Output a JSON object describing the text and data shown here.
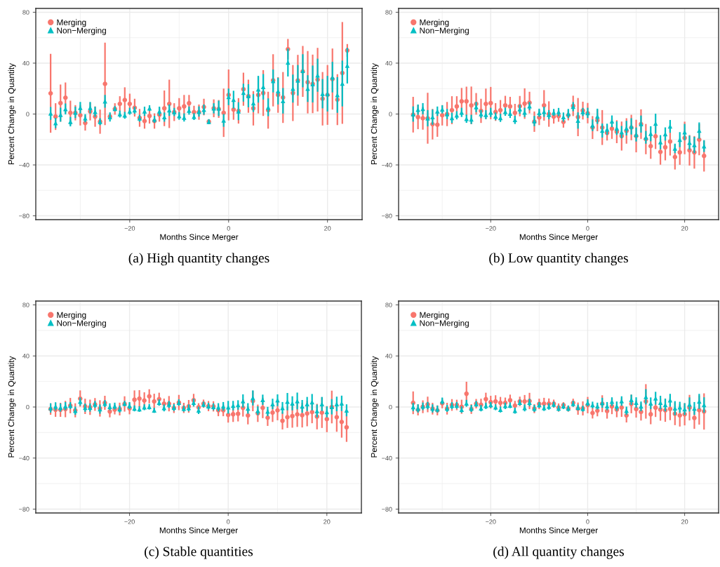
{
  "chart_data": [
    {
      "type": "scatter",
      "title": "(a) High quantity changes",
      "xlabel": "Months Since Merger",
      "ylabel": "Percent Change in Quantity",
      "x": [
        -36,
        -35,
        -34,
        -33,
        -32,
        -31,
        -30,
        -29,
        -28,
        -27,
        -26,
        -25,
        -24,
        -23,
        -22,
        -21,
        -20,
        -19,
        -18,
        -17,
        -16,
        -15,
        -14,
        -13,
        -12,
        -11,
        -10,
        -9,
        -8,
        -7,
        -6,
        -5,
        -4,
        -3,
        -2,
        -1,
        0,
        1,
        2,
        3,
        4,
        5,
        6,
        7,
        8,
        9,
        10,
        11,
        12,
        13,
        14,
        15,
        16,
        17,
        18,
        19,
        20,
        21,
        22,
        23,
        24
      ],
      "xlim": [
        -39,
        27
      ],
      "ylim": [
        -83,
        83
      ],
      "xticks": [
        {
          "value": -30,
          "label": null
        },
        {
          "value": -20,
          "label": "−20"
        },
        {
          "value": -10,
          "label": null
        },
        0,
        {
          "value": 10,
          "label": null
        },
        20
      ],
      "yticks": [
        {
          "value": -80,
          "label": "−80"
        },
        {
          "value": -60,
          "label": null
        },
        {
          "value": -40,
          "label": "−40"
        },
        {
          "value": -20,
          "label": null
        },
        0,
        {
          "value": 20,
          "label": null
        },
        40,
        {
          "value": 60,
          "label": null
        },
        80
      ],
      "grid": true,
      "legend": "top left",
      "series": [
        {
          "name": "Merging",
          "color": "#f8766d",
          "marker": "circle",
          "values": [
            16.3,
            -2,
            8.6,
            12.8,
            1,
            1,
            -1,
            -7,
            2,
            -2,
            -6,
            23.7,
            -2,
            4,
            8,
            11,
            8,
            5,
            -3,
            -5.5,
            -1.5,
            -5.5,
            -0.5,
            4.5,
            8,
            1.5,
            4.5,
            6,
            8.5,
            1.5,
            1.5,
            5.5,
            -6,
            4.5,
            4,
            1,
            15,
            3.5,
            2.5,
            19.5,
            14,
            4.5,
            15,
            16.5,
            3,
            26.5,
            15,
            13,
            51,
            16.5,
            26.5,
            33.5,
            25,
            23.7,
            27,
            12,
            15,
            27.5,
            11.3,
            32.3,
            50
          ],
          "errors": [
            31,
            10.5,
            14.6,
            12,
            9.5,
            6,
            8,
            6,
            7,
            8,
            9.5,
            32.4,
            null,
            4.5,
            6,
            10,
            8,
            7,
            7,
            6,
            6,
            6,
            5.5,
            14,
            19,
            7,
            8,
            9,
            6.5,
            5,
            6,
            6.5,
            null,
            7,
            7,
            19,
            20,
            8,
            10,
            13,
            13,
            13.5,
            14.5,
            18,
            14.5,
            20.5,
            14,
            20,
            8,
            22,
            20,
            20,
            24.5,
            23,
            25,
            21,
            23.5,
            24,
            20,
            40,
            5
          ]
        },
        {
          "name": "Non−Merging",
          "color": "#00bfc4",
          "marker": "triangle",
          "values": [
            0.5,
            -7,
            -0.5,
            4,
            -6,
            1.3,
            5,
            -3.3,
            5,
            1.8,
            -6,
            10,
            -2.3,
            4.2,
            0,
            -1,
            2.2,
            3,
            -3.3,
            2.2,
            4.6,
            -4.2,
            2.2,
            -2.4,
            3,
            1.6,
            -1.5,
            -2.7,
            2.7,
            -2,
            2,
            3.5,
            -6,
            4.5,
            4.5,
            -5,
            13.5,
            11.3,
            2.2,
            16.8,
            14.4,
            8.6,
            19.5,
            21.4,
            5.3,
            26,
            18,
            10.4,
            40.5,
            20,
            26.5,
            34,
            20,
            23.6,
            30.5,
            16,
            16,
            29,
            15,
            24,
            38
          ],
          "errors": [
            5,
            4,
            5.5,
            4.3,
            3.7,
            4.5,
            4.5,
            3.2,
            4.5,
            4,
            2.7,
            5,
            3.6,
            2,
            2.7,
            2.7,
            2.7,
            2.7,
            2.7,
            3.6,
            2.3,
            2.7,
            3.6,
            3.6,
            4.5,
            3.2,
            3,
            3.2,
            3.2,
            2.7,
            4,
            4,
            2,
            4,
            6,
            5,
            6.5,
            7,
            7,
            7,
            9,
            7,
            10.5,
            10,
            7,
            9,
            10.5,
            10,
            11,
            11,
            12,
            13,
            10.5,
            14.5,
            13,
            11.5,
            14,
            12,
            14,
            18,
            14
          ]
        }
      ]
    },
    {
      "type": "scatter",
      "title": "(b) Low quantity changes",
      "xlabel": "Months Since Merger",
      "ylabel": "Percent Change in Quantity",
      "x": [
        -36,
        -35,
        -34,
        -33,
        -32,
        -31,
        -30,
        -29,
        -28,
        -27,
        -26,
        -25,
        -24,
        -23,
        -22,
        -21,
        -20,
        -19,
        -18,
        -17,
        -16,
        -15,
        -14,
        -13,
        -12,
        -11,
        -10,
        -9,
        -8,
        -7,
        -6,
        -5,
        -4,
        -3,
        -2,
        -1,
        0,
        1,
        2,
        3,
        4,
        5,
        6,
        7,
        8,
        9,
        10,
        11,
        12,
        13,
        14,
        15,
        16,
        17,
        18,
        19,
        20,
        21,
        22,
        23,
        24
      ],
      "xlim": [
        -39,
        27
      ],
      "ylim": [
        -83,
        83
      ],
      "xticks": [
        {
          "value": -30,
          "label": null
        },
        {
          "value": -20,
          "label": "−20"
        },
        {
          "value": -10,
          "label": null
        },
        0,
        {
          "value": 10,
          "label": null
        },
        20
      ],
      "yticks": [
        {
          "value": -80,
          "label": "−80"
        },
        {
          "value": -60,
          "label": null
        },
        {
          "value": -40,
          "label": "−40"
        },
        {
          "value": -20,
          "label": null
        },
        0,
        {
          "value": 20,
          "label": null
        },
        40,
        {
          "value": 60,
          "label": null
        },
        80
      ],
      "grid": true,
      "legend": "top left",
      "series": [
        {
          "name": "Merging",
          "color": "#f8766d",
          "marker": "circle",
          "values": [
            -0.5,
            -2.4,
            -3.3,
            -3.3,
            -8,
            -8.4,
            -1,
            0,
            3,
            6,
            10,
            10,
            6.8,
            8,
            2.5,
            8,
            8.6,
            1.6,
            3,
            6.8,
            6,
            1,
            6.2,
            8.2,
            9,
            -6,
            -2.7,
            6.8,
            0,
            -2,
            -1.6,
            -6.2,
            -1,
            6.4,
            -2.4,
            2.7,
            0.7,
            -10.6,
            -5,
            -10.6,
            -14.8,
            -11.5,
            -13.9,
            -17.3,
            -13.3,
            -10.6,
            -17.3,
            -7.9,
            -19.7,
            -25.2,
            -17.5,
            -29.8,
            -26.1,
            -21.6,
            -33.8,
            -30.1,
            -18.8,
            -28.5,
            -30.1,
            -20.1,
            -32.9
          ],
          "errors": [
            14,
            9.5,
            9,
            20,
            12,
            9.5,
            8,
            9.5,
            11,
            8,
            10.5,
            11.5,
            14.8,
            8.5,
            9.5,
            12,
            12.7,
            7,
            8,
            7.5,
            7.5,
            7,
            8,
            12,
            8.5,
            8,
            6,
            12,
            10,
            5.5,
            4.5,
            4.5,
            4,
            8,
            15,
            7,
            8,
            9,
            8.5,
            13.7,
            6,
            8,
            9,
            11.4,
            10,
            10,
            12.8,
            11.6,
            11.9,
            10,
            10,
            10,
            10.3,
            11,
            9.8,
            9.8,
            12.8,
            12,
            12.8,
            12.3,
            12.3
          ]
        },
        {
          "name": "Non−Merging",
          "color": "#00bfc4",
          "marker": "triangle",
          "values": [
            0,
            3.5,
            4.2,
            -3.3,
            -2.4,
            2.2,
            3.7,
            0,
            -3,
            -1,
            1.3,
            -3.7,
            -4.2,
            5.5,
            0,
            -0.5,
            1.3,
            -1.8,
            -3,
            1.8,
            0.4,
            -4.6,
            3.8,
            1.3,
            6.2,
            -5.5,
            1,
            1.8,
            -0.5,
            1.3,
            1.6,
            -2.4,
            0.4,
            5.8,
            -5.1,
            1.6,
            0.9,
            -8.8,
            -1.8,
            -13,
            -12,
            -5.7,
            -11.1,
            -14.2,
            -11.1,
            -9.7,
            -16.1,
            -7.9,
            -18.3,
            -15.5,
            -7.5,
            -22.1,
            -15.7,
            -9.7,
            -27,
            -20.1,
            -14.2,
            -22.5,
            -24.3,
            -13,
            -25.2
          ],
          "errors": [
            6,
            4,
            4.4,
            6.4,
            6,
            3.7,
            3.2,
            4,
            4,
            3.2,
            3.6,
            3.2,
            3.6,
            4,
            3.2,
            3.5,
            3.6,
            3,
            3.2,
            3.2,
            3.5,
            3.2,
            3.5,
            3.6,
            3.2,
            4,
            3.2,
            4,
            3.6,
            2.7,
            3.2,
            3.6,
            3.6,
            3.6,
            6.4,
            3.2,
            4,
            4.6,
            6,
            5.5,
            4.4,
            4.6,
            5.3,
            4.8,
            5.7,
            6.4,
            5.5,
            6.7,
            5,
            5.9,
            7.8,
            5.5,
            5.2,
            5,
            3.7,
            5.9,
            6.4,
            5.5,
            6.4,
            6.4,
            4.6
          ]
        }
      ]
    },
    {
      "type": "scatter",
      "title": "(c) Stable quantities",
      "xlabel": "Months Since Merger",
      "ylabel": "Percent Change in Quantity",
      "x": [
        -36,
        -35,
        -34,
        -33,
        -32,
        -31,
        -30,
        -29,
        -28,
        -27,
        -26,
        -25,
        -24,
        -23,
        -22,
        -21,
        -20,
        -19,
        -18,
        -17,
        -16,
        -15,
        -14,
        -13,
        -12,
        -11,
        -10,
        -9,
        -8,
        -7,
        -6,
        -5,
        -4,
        -3,
        -2,
        -1,
        0,
        1,
        2,
        3,
        4,
        5,
        6,
        7,
        8,
        9,
        10,
        11,
        12,
        13,
        14,
        15,
        16,
        17,
        18,
        19,
        20,
        21,
        22,
        23,
        24
      ],
      "xlim": [
        -39,
        27
      ],
      "ylim": [
        -83,
        83
      ],
      "xticks": [
        {
          "value": -30,
          "label": null
        },
        {
          "value": -20,
          "label": "−20"
        },
        {
          "value": -10,
          "label": null
        },
        0,
        {
          "value": 10,
          "label": null
        },
        20
      ],
      "yticks": [
        {
          "value": -80,
          "label": "−80"
        },
        {
          "value": -60,
          "label": null
        },
        {
          "value": -40,
          "label": "−40"
        },
        {
          "value": -20,
          "label": null
        },
        0,
        {
          "value": 20,
          "label": null
        },
        40,
        {
          "value": 60,
          "label": null
        },
        80
      ],
      "grid": true,
      "legend": "top left",
      "series": [
        {
          "name": "Merging",
          "color": "#f8766d",
          "marker": "circle",
          "values": [
            -1.6,
            -2.2,
            -2.2,
            -1.6,
            1.1,
            -2.6,
            6.6,
            0.5,
            -0.2,
            2,
            -1.1,
            3.3,
            -3.5,
            -2,
            -1.6,
            2.4,
            -1.1,
            5.7,
            6.6,
            5.1,
            8.4,
            4.4,
            6.2,
            2.6,
            2.6,
            -0.7,
            3.5,
            -0.7,
            0.5,
            5.3,
            -0.2,
            2.6,
            0.7,
            0.5,
            -2.6,
            -2.6,
            -6.2,
            -5.7,
            -5.3,
            -0.7,
            -6.6,
            4.7,
            -4.9,
            -0.7,
            -8.4,
            -4.4,
            -2.6,
            -10.8,
            -8,
            -7.1,
            -5.8,
            -6.4,
            -5.1,
            -4,
            -7.5,
            -4.4,
            -9.5,
            0,
            -8,
            -11.7,
            -15.9
          ],
          "errors": [
            4.5,
            5.5,
            5.5,
            6.4,
            6,
            5.5,
            6.4,
            6,
            6,
            5,
            6.4,
            5.5,
            4.6,
            3.8,
            5,
            6,
            4.6,
            7.3,
            6.6,
            6.4,
            5.5,
            6,
            5,
            4,
            6,
            4,
            6,
            4,
            5,
            5,
            3.2,
            3.2,
            4,
            4,
            4.6,
            4.6,
            6,
            6,
            6,
            6.8,
            7,
            8,
            6.8,
            8,
            6.4,
            7.3,
            7.8,
            6.8,
            8.4,
            9.1,
            9.8,
            9.6,
            10,
            8.7,
            10,
            12,
            10.2,
            12.8,
            11.4,
            12.3,
            11.4
          ]
        },
        {
          "name": "Non−Merging",
          "color": "#00bfc4",
          "marker": "triangle",
          "values": [
            -0.7,
            0.5,
            -0.4,
            0.7,
            1.1,
            -2.9,
            4.2,
            -0.5,
            -0.4,
            2,
            -1.6,
            2.7,
            0.2,
            0.7,
            -1.6,
            2.7,
            1.1,
            -1.1,
            -1.6,
            -0.2,
            0.2,
            -2.6,
            3.5,
            -0.7,
            2,
            -0.4,
            3.5,
            -1.3,
            -0.7,
            3.5,
            -2.6,
            2,
            0.7,
            0.2,
            -0.2,
            0.5,
            -0.2,
            1.1,
            1.6,
            4.7,
            -1.1,
            7.1,
            -2.9,
            5.7,
            -3.5,
            2.4,
            5.3,
            -0.7,
            4.2,
            2.9,
            4.7,
            0.5,
            2.4,
            3.8,
            -3.1,
            2.4,
            -3.8,
            0.2,
            2.4,
            2.9,
            -2.6
          ],
          "errors": [
            3.6,
            3.2,
            3.2,
            3.2,
            2.7,
            3.2,
            3.2,
            3.2,
            3.2,
            2.7,
            3.6,
            2.7,
            2.7,
            2.7,
            2.7,
            2.1,
            2.7,
            2.3,
            2.2,
            2.3,
            2.2,
            2,
            2.5,
            2.7,
            2.7,
            2.7,
            2.5,
            2.3,
            2.7,
            3,
            2.9,
            2.2,
            2.6,
            2.7,
            3.2,
            3.4,
            5,
            3.7,
            3.7,
            5.2,
            4.1,
            5.9,
            3.4,
            4,
            3.6,
            4.1,
            4.6,
            4.6,
            6.8,
            5.5,
            6.6,
            5,
            5.5,
            6.4,
            5,
            5.5,
            4.3,
            6,
            5.7,
            6,
            4.7
          ]
        }
      ]
    },
    {
      "type": "scatter",
      "title": "(d) All quantity changes",
      "xlabel": "Months Since Merger",
      "ylabel": "Percent Change in Quantity",
      "x": [
        -36,
        -35,
        -34,
        -33,
        -32,
        -31,
        -30,
        -29,
        -28,
        -27,
        -26,
        -25,
        -24,
        -23,
        -22,
        -21,
        -20,
        -19,
        -18,
        -17,
        -16,
        -15,
        -14,
        -13,
        -12,
        -11,
        -10,
        -9,
        -8,
        -7,
        -6,
        -5,
        -4,
        -3,
        -2,
        -1,
        0,
        1,
        2,
        3,
        4,
        5,
        6,
        7,
        8,
        9,
        10,
        11,
        12,
        13,
        14,
        15,
        16,
        17,
        18,
        19,
        20,
        21,
        22,
        23,
        24
      ],
      "xlim": [
        -39,
        27
      ],
      "ylim": [
        -83,
        83
      ],
      "xticks": [
        {
          "value": -30,
          "label": null
        },
        {
          "value": -20,
          "label": "−20"
        },
        {
          "value": -10,
          "label": null
        },
        0,
        {
          "value": 10,
          "label": null
        },
        20
      ],
      "yticks": [
        {
          "value": -80,
          "label": "−80"
        },
        {
          "value": -60,
          "label": null
        },
        {
          "value": -40,
          "label": "−40"
        },
        {
          "value": -20,
          "label": null
        },
        0,
        {
          "value": 20,
          "label": null
        },
        40,
        {
          "value": 60,
          "label": null
        },
        80
      ],
      "grid": true,
      "legend": "top left",
      "series": [
        {
          "name": "Merging",
          "color": "#f8766d",
          "marker": "circle",
          "values": [
            3.3,
            -2.2,
            0.2,
            2,
            -1.3,
            -2.6,
            2.9,
            -1.3,
            1.6,
            1.6,
            0.2,
            10.4,
            -1.6,
            2.6,
            1.8,
            6.2,
            3.8,
            4.4,
            3.3,
            3.3,
            5.3,
            1.1,
            4.4,
            4.4,
            4.7,
            -1.3,
            2.4,
            2.6,
            2.6,
            2.6,
            -0.4,
            1.5,
            -1.3,
            3.3,
            -1.3,
            -1.1,
            1.5,
            -4.7,
            -2.9,
            2.6,
            -3.1,
            0.5,
            -2,
            -0.4,
            -6.6,
            2.4,
            -1.6,
            -3.8,
            4.4,
            -5.7,
            -0.5,
            -2,
            -2.6,
            -1.5,
            -5.3,
            -6.6,
            -5.7,
            -0.5,
            -8.6,
            -2.4,
            -3.5
          ],
          "errors": [
            8.9,
            4.4,
            5,
            6.1,
            4.6,
            3.9,
            3.9,
            4.6,
            4.6,
            4.1,
            5.5,
            9.4,
            3.8,
            3.7,
            4.7,
            5,
            5,
            4.8,
            4.6,
            4.1,
            4.4,
            3.7,
            3.7,
            5,
            6.4,
            3.5,
            4.1,
            4.6,
            4.1,
            3.2,
            3.2,
            2.3,
            2.3,
            3.2,
            4.8,
            5.5,
            6.4,
            4.3,
            4.4,
            6.6,
            6,
            6.1,
            6,
            7.3,
            5.5,
            7.3,
            6.7,
            6.8,
            13.5,
            7.8,
            7.3,
            8.7,
            9,
            8.8,
            8.9,
            8.7,
            8.7,
            10,
            8.5,
            11.4,
            14.2
          ]
        },
        {
          "name": "Non−Merging",
          "color": "#00bfc4",
          "marker": "triangle",
          "values": [
            0,
            -1.1,
            0.5,
            1.1,
            -1.1,
            -1.6,
            4.7,
            -1.1,
            1.1,
            1.3,
            -2,
            2.9,
            -1.1,
            2.4,
            -0.9,
            0.9,
            1.6,
            -0.2,
            -2,
            0.9,
            1.3,
            -2.9,
            3.5,
            -0.7,
            3.5,
            -1.1,
            1.6,
            -0.7,
            0.4,
            2,
            -1.1,
            0.7,
            -1.1,
            2.6,
            -0.4,
            -1.3,
            3.3,
            1.6,
            0.7,
            3.3,
            0.7,
            4.2,
            0.7,
            4.7,
            -2.9,
            5.7,
            3.5,
            0.5,
            8,
            2.9,
            6.9,
            3.5,
            1.6,
            5.3,
            -0.9,
            -0.2,
            -1.6,
            2,
            -1.1,
            4.4,
            1.6
          ],
          "errors": [
            3.2,
            3.2,
            3,
            2.9,
            3.2,
            2.7,
            2.7,
            2.7,
            2.7,
            2.7,
            2.5,
            2.7,
            2.7,
            2.3,
            2.5,
            2.5,
            2.3,
            2.3,
            2.3,
            2.5,
            2.2,
            2.3,
            2.3,
            2.7,
            3,
            2.7,
            2.3,
            2.4,
            2.5,
            2.2,
            2.3,
            2.3,
            2.3,
            2.3,
            2.3,
            2.3,
            2.7,
            2.6,
            2.7,
            3.9,
            3.2,
            3.4,
            3.6,
            3.7,
            3.2,
            4,
            4.1,
            3.8,
            6,
            4.6,
            5,
            5.3,
            5,
            5,
            5.5,
            4.3,
            4.6,
            5.5,
            5,
            5.9,
            6
          ]
        }
      ]
    }
  ]
}
